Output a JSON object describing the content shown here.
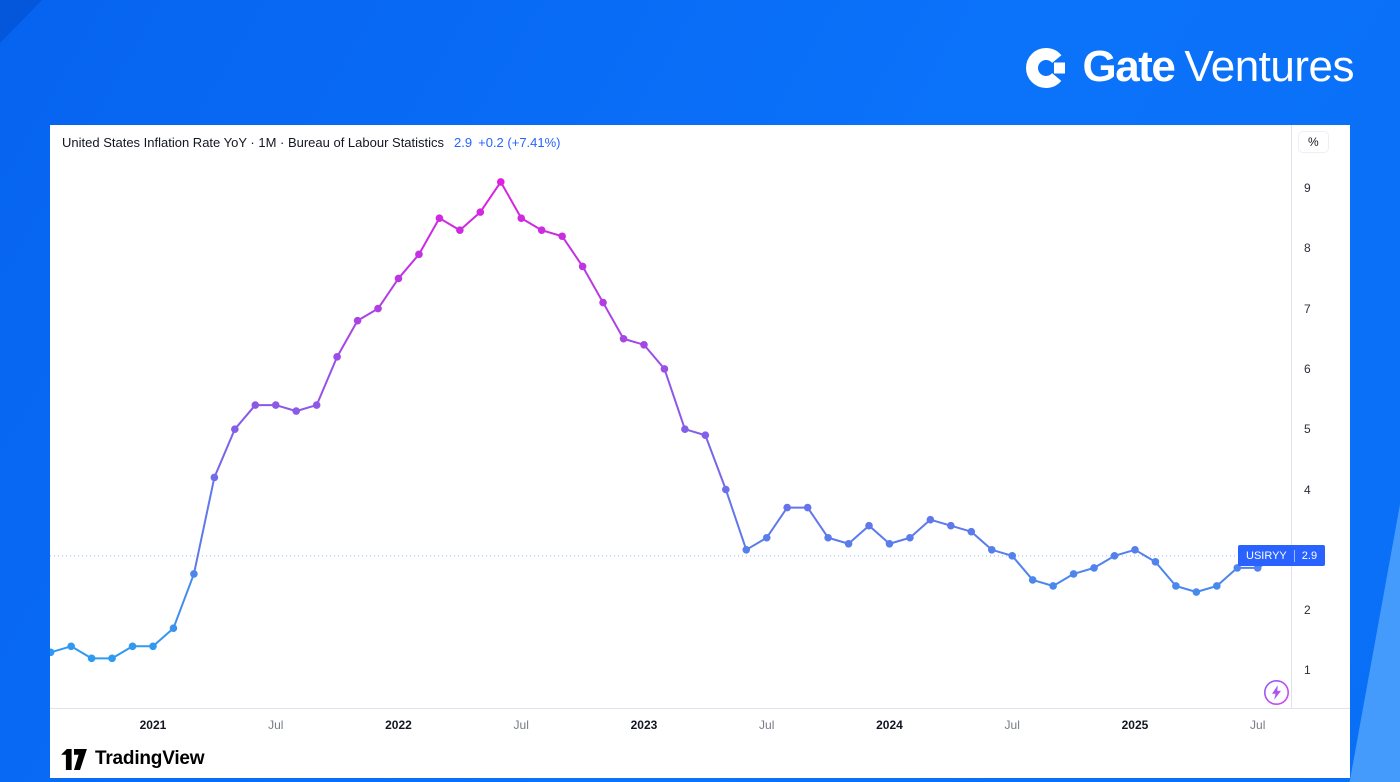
{
  "branding": {
    "logo_text_bold": "Gate",
    "logo_text_light": "Ventures"
  },
  "header": {
    "title_line": "United States Inflation Rate YoY · 1M · Bureau of Labour Statistics",
    "last_value": "2.9",
    "change": "+0.2 (+7.41%)"
  },
  "price_scale": {
    "unit": "%",
    "labels": [
      "9",
      "8",
      "7",
      "6",
      "5",
      "4",
      "3",
      "2",
      "1"
    ]
  },
  "symbol_badge": {
    "symbol": "USIRYY",
    "value": "2.9"
  },
  "time_scale": {
    "ticks": [
      {
        "label": "2021",
        "month_index": 5,
        "major": true
      },
      {
        "label": "Jul",
        "month_index": 11,
        "major": false
      },
      {
        "label": "2022",
        "month_index": 17,
        "major": true
      },
      {
        "label": "Jul",
        "month_index": 23,
        "major": false
      },
      {
        "label": "2023",
        "month_index": 29,
        "major": true
      },
      {
        "label": "Jul",
        "month_index": 35,
        "major": false
      },
      {
        "label": "2024",
        "month_index": 41,
        "major": true
      },
      {
        "label": "Jul",
        "month_index": 47,
        "major": false
      },
      {
        "label": "2025",
        "month_index": 53,
        "major": true
      },
      {
        "label": "Jul",
        "month_index": 59,
        "major": false
      }
    ]
  },
  "watermark": {
    "brand": "TradingView"
  },
  "chart_data": {
    "type": "line",
    "symbol": "USIRYY",
    "title": "United States Inflation Rate YoY (%)",
    "unit": "%",
    "current": 2.9,
    "ylim": [
      0.5,
      9.7
    ],
    "y_ticks": [
      1,
      2,
      3,
      4,
      5,
      6,
      7,
      8,
      9
    ],
    "legend_position": "top-left",
    "grid": false,
    "color_low": "#2E9BF0",
    "color_high": "#DE1FDF",
    "x": [
      "2020-08",
      "2020-09",
      "2020-10",
      "2020-11",
      "2020-12",
      "2021-01",
      "2021-02",
      "2021-03",
      "2021-04",
      "2021-05",
      "2021-06",
      "2021-07",
      "2021-08",
      "2021-09",
      "2021-10",
      "2021-11",
      "2021-12",
      "2022-01",
      "2022-02",
      "2022-03",
      "2022-04",
      "2022-05",
      "2022-06",
      "2022-07",
      "2022-08",
      "2022-09",
      "2022-10",
      "2022-11",
      "2022-12",
      "2023-01",
      "2023-02",
      "2023-03",
      "2023-04",
      "2023-05",
      "2023-06",
      "2023-07",
      "2023-08",
      "2023-09",
      "2023-10",
      "2023-11",
      "2023-12",
      "2024-01",
      "2024-02",
      "2024-03",
      "2024-04",
      "2024-05",
      "2024-06",
      "2024-07",
      "2024-08",
      "2024-09",
      "2024-10",
      "2024-11",
      "2024-12",
      "2025-01",
      "2025-02",
      "2025-03",
      "2025-04",
      "2025-05",
      "2025-06",
      "2025-07",
      "2025-08"
    ],
    "values": [
      1.3,
      1.4,
      1.2,
      1.2,
      1.4,
      1.4,
      1.7,
      2.6,
      4.2,
      5.0,
      5.4,
      5.4,
      5.3,
      5.4,
      6.2,
      6.8,
      7.0,
      7.5,
      7.9,
      8.5,
      8.3,
      8.6,
      9.1,
      8.5,
      8.3,
      8.2,
      7.7,
      7.1,
      6.5,
      6.4,
      6.0,
      5.0,
      4.9,
      4.0,
      3.0,
      3.2,
      3.7,
      3.7,
      3.2,
      3.1,
      3.4,
      3.1,
      3.2,
      3.5,
      3.4,
      3.3,
      3.0,
      2.9,
      2.5,
      2.4,
      2.6,
      2.7,
      2.9,
      3.0,
      2.8,
      2.4,
      2.3,
      2.4,
      2.7,
      2.7,
      2.9
    ]
  }
}
